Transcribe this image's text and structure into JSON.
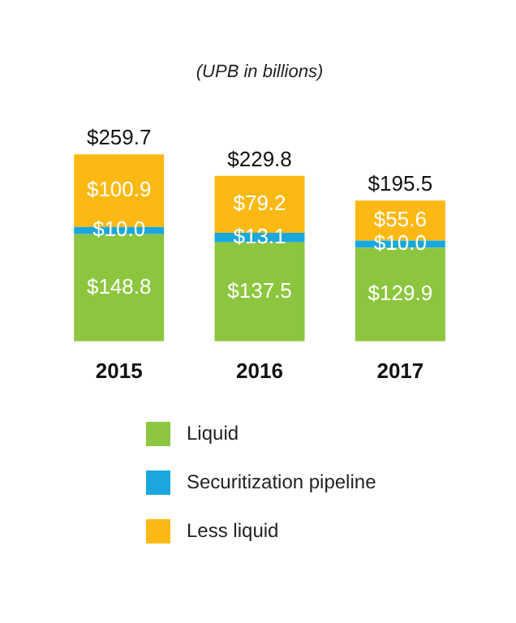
{
  "chart_data": {
    "type": "bar",
    "title": "(UPB in billions)",
    "categories": [
      "2015",
      "2016",
      "2017"
    ],
    "stacked": true,
    "legend": "bottom",
    "series": [
      {
        "name": "Liquid",
        "color": "#8cc63f",
        "values": [
          148.8,
          137.5,
          129.9
        ],
        "value_labels": [
          "$148.8",
          "$137.5",
          "$129.9"
        ]
      },
      {
        "name": "Securitization pipeline",
        "color": "#1aa7de",
        "values": [
          10.0,
          13.1,
          10.0
        ],
        "value_labels": [
          "$10.0",
          "$13.1",
          "$10.0"
        ]
      },
      {
        "name": "Less liquid",
        "color": "#fdb913",
        "values": [
          100.9,
          79.2,
          55.6
        ],
        "value_labels": [
          "$100.9",
          "$79.2",
          "$55.6"
        ]
      }
    ],
    "totals": [
      "$259.7",
      "$229.8",
      "$195.5"
    ]
  }
}
